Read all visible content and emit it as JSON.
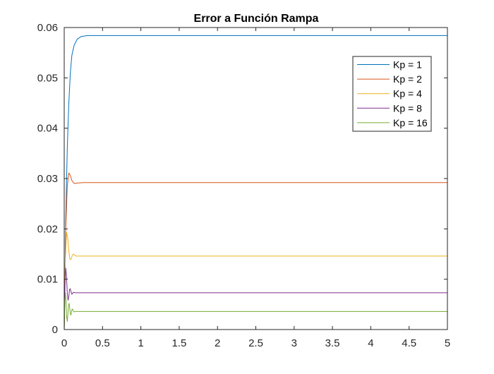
{
  "chart_data": {
    "type": "line",
    "title": "Error a Función Rampa",
    "xlabel": "",
    "ylabel": "",
    "xlim": [
      0,
      5
    ],
    "ylim": [
      0,
      0.06
    ],
    "grid": false,
    "legend_position": "top-right",
    "x_ticks": [
      "0",
      "0.5",
      "1",
      "1.5",
      "2",
      "2.5",
      "3",
      "3.5",
      "4",
      "4.5",
      "5"
    ],
    "y_ticks": [
      "0",
      "0.01",
      "0.02",
      "0.03",
      "0.04",
      "0.05",
      "0.06"
    ],
    "series": [
      {
        "name": "Kp = 1",
        "color": "#0072BD",
        "points": [
          [
            0,
            0
          ],
          [
            0.02,
            0.022
          ],
          [
            0.04,
            0.036
          ],
          [
            0.06,
            0.045
          ],
          [
            0.08,
            0.051
          ],
          [
            0.1,
            0.0545
          ],
          [
            0.13,
            0.0565
          ],
          [
            0.17,
            0.0577
          ],
          [
            0.22,
            0.0582
          ],
          [
            0.3,
            0.0584
          ],
          [
            5,
            0.0584
          ]
        ]
      },
      {
        "name": "Kp = 2",
        "color": "#D95319",
        "points": [
          [
            0,
            0
          ],
          [
            0.02,
            0.02
          ],
          [
            0.04,
            0.0285
          ],
          [
            0.06,
            0.0311
          ],
          [
            0.08,
            0.0306
          ],
          [
            0.1,
            0.0296
          ],
          [
            0.13,
            0.029
          ],
          [
            0.17,
            0.0291
          ],
          [
            0.25,
            0.0292
          ],
          [
            5,
            0.0292
          ]
        ]
      },
      {
        "name": "Kp = 4",
        "color": "#EDB120",
        "points": [
          [
            0,
            0
          ],
          [
            0.015,
            0.014
          ],
          [
            0.03,
            0.0193
          ],
          [
            0.045,
            0.0183
          ],
          [
            0.06,
            0.0155
          ],
          [
            0.075,
            0.0139
          ],
          [
            0.09,
            0.014
          ],
          [
            0.105,
            0.0147
          ],
          [
            0.12,
            0.015
          ],
          [
            0.15,
            0.0146
          ],
          [
            0.2,
            0.0146
          ],
          [
            5,
            0.0146
          ]
        ]
      },
      {
        "name": "Kp = 8",
        "color": "#7E2F8E",
        "points": [
          [
            0,
            0
          ],
          [
            0.01,
            0.009
          ],
          [
            0.02,
            0.0122
          ],
          [
            0.03,
            0.0105
          ],
          [
            0.04,
            0.0072
          ],
          [
            0.05,
            0.0058
          ],
          [
            0.06,
            0.0066
          ],
          [
            0.07,
            0.008
          ],
          [
            0.08,
            0.0081
          ],
          [
            0.09,
            0.0074
          ],
          [
            0.1,
            0.007
          ],
          [
            0.12,
            0.0074
          ],
          [
            0.15,
            0.0073
          ],
          [
            5,
            0.0073
          ]
        ]
      },
      {
        "name": "Kp = 16",
        "color": "#77AC30",
        "points": [
          [
            0,
            0
          ],
          [
            0.008,
            0.0055
          ],
          [
            0.016,
            0.0072
          ],
          [
            0.024,
            0.0055
          ],
          [
            0.032,
            0.0025
          ],
          [
            0.04,
            0.0016
          ],
          [
            0.048,
            0.003
          ],
          [
            0.056,
            0.0048
          ],
          [
            0.064,
            0.0052
          ],
          [
            0.072,
            0.0042
          ],
          [
            0.08,
            0.0031
          ],
          [
            0.088,
            0.0029
          ],
          [
            0.096,
            0.0036
          ],
          [
            0.104,
            0.0041
          ],
          [
            0.115,
            0.0038
          ],
          [
            0.13,
            0.0035
          ],
          [
            0.15,
            0.0036
          ],
          [
            5,
            0.0036
          ]
        ]
      }
    ]
  }
}
